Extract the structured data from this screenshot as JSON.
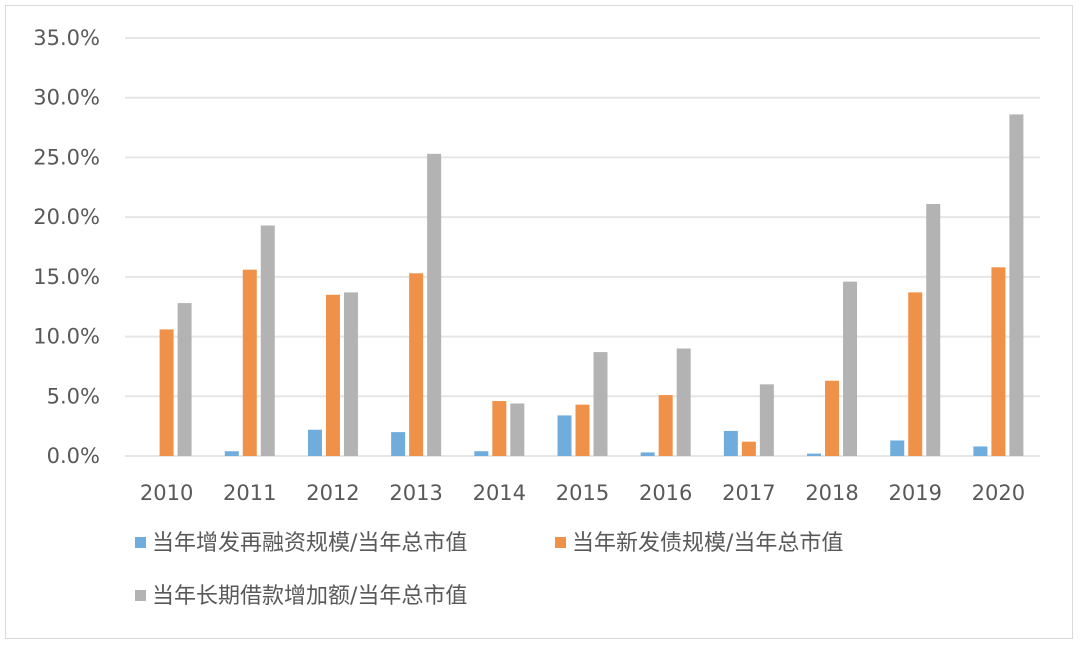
{
  "chart_data": {
    "type": "bar",
    "title": "",
    "xlabel": "",
    "ylabel": "",
    "categories": [
      "2010",
      "2011",
      "2012",
      "2013",
      "2014",
      "2015",
      "2016",
      "2017",
      "2018",
      "2019",
      "2020"
    ],
    "ylim": [
      0,
      35
    ],
    "yticks": [
      "0.0%",
      "5.0%",
      "10.0%",
      "15.0%",
      "20.0%",
      "25.0%",
      "30.0%",
      "35.0%"
    ],
    "grid": true,
    "legend_position": "bottom",
    "series": [
      {
        "name": "当年增发再融资规模/当年总市值",
        "color": "#70ADDC",
        "values": [
          0,
          0.4,
          2.2,
          2.0,
          0.4,
          3.4,
          0.3,
          2.1,
          0.2,
          1.3,
          0.8
        ]
      },
      {
        "name": "当年新发债规模/当年总市值",
        "color": "#F0914A",
        "values": [
          10.6,
          15.6,
          13.5,
          15.3,
          4.6,
          4.3,
          5.1,
          1.2,
          6.3,
          13.7,
          15.8
        ]
      },
      {
        "name": "当年长期借款增加额/当年总市值",
        "color": "#B3B3B3",
        "values": [
          12.8,
          19.3,
          13.7,
          25.3,
          4.4,
          8.7,
          9.0,
          6.0,
          14.6,
          21.1,
          28.6
        ]
      }
    ]
  }
}
